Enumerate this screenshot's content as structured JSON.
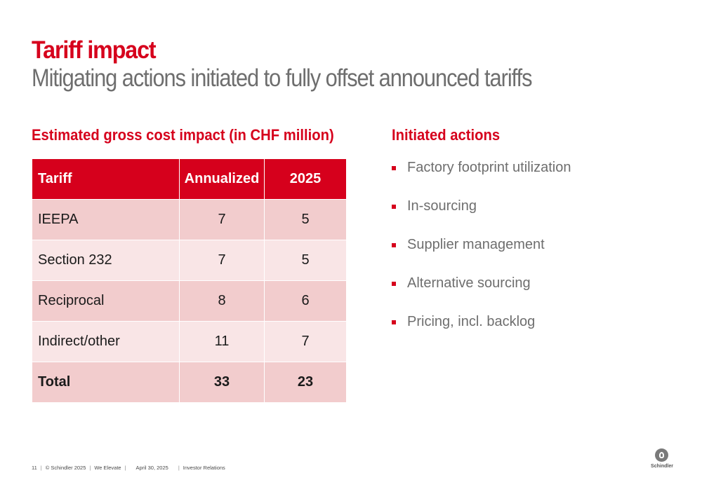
{
  "title": "Tariff impact",
  "subtitle": "Mitigating actions initiated to fully offset announced tariffs",
  "left_heading": "Estimated gross cost impact (in CHF million)",
  "table": {
    "headers": [
      "Tariff",
      "Annualized",
      "2025"
    ],
    "rows": [
      [
        "IEEPA",
        "7",
        "5"
      ],
      [
        "Section 232",
        "7",
        "5"
      ],
      [
        "Reciprocal",
        "8",
        "6"
      ],
      [
        "Indirect/other",
        "11",
        "7"
      ],
      [
        "Total",
        "33",
        "23"
      ]
    ]
  },
  "right_heading": "Initiated actions",
  "actions": [
    "Factory footprint utilization",
    "In-sourcing",
    "Supplier management",
    "Alternative sourcing",
    "Pricing, incl. backlog"
  ],
  "footer": {
    "page": "11",
    "copyright": "© Schindler 2025",
    "tagline": "We Elevate",
    "date": "April 30, 2025",
    "department": "Investor Relations"
  },
  "logo_text": "Schindler",
  "colors": {
    "accent": "#d6001c",
    "row_dark": "#f2cccd",
    "row_light": "#f9e5e6",
    "subtitle_gray": "#6e6e6e"
  }
}
